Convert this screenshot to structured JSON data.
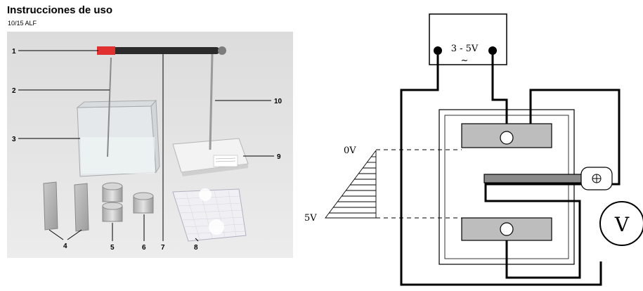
{
  "header": {
    "title": "Instrucciones de uso",
    "code": "10/15 ALF"
  },
  "photo": {
    "callouts": [
      "1",
      "2",
      "3",
      "4",
      "5",
      "6",
      "7",
      "8",
      "9",
      "10"
    ]
  },
  "schematic": {
    "supply_label": "3 - 5V",
    "supply_symbol": "~",
    "voltage_top": "0V",
    "voltage_bottom": "5V",
    "meter_label": "V"
  }
}
